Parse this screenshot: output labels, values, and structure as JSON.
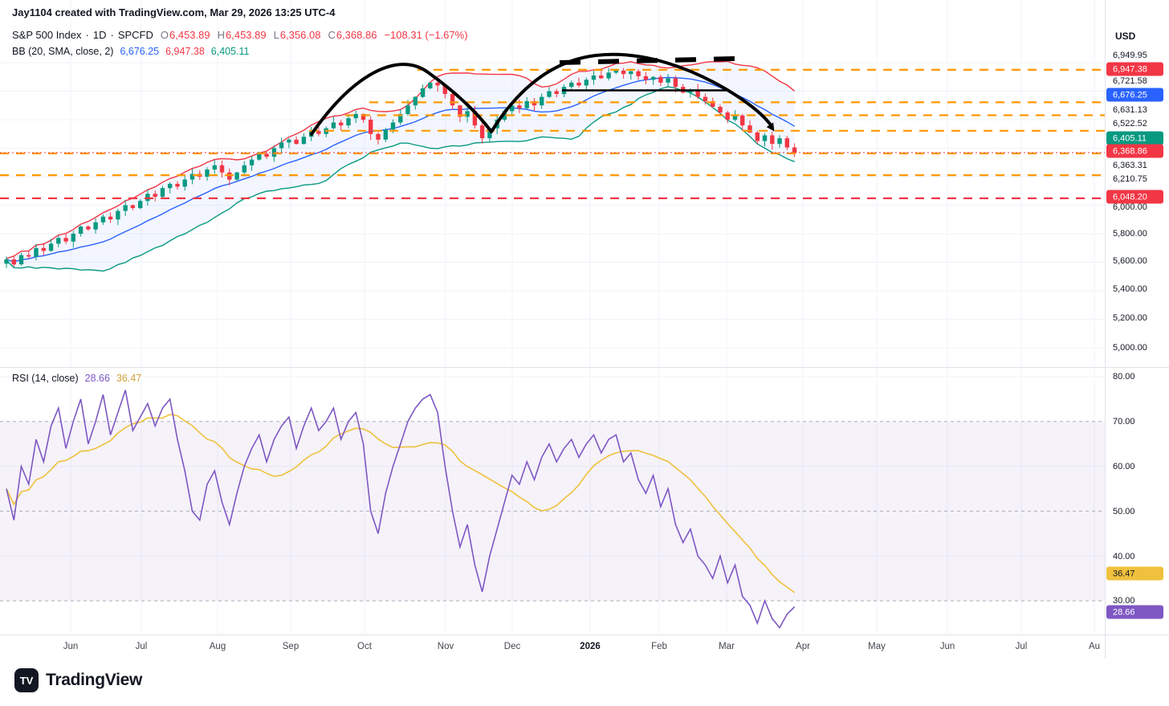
{
  "attribution": "Jay1104 created with TradingView.com, Mar 29, 2026 13:25 UTC-4",
  "legend": {
    "symbol": "S&P 500 Index",
    "separator": "·",
    "interval": "1D",
    "exchange": "SPCFD",
    "ohlc": {
      "o_label": "O",
      "o": "6,453.89",
      "h_label": "H",
      "h": "6,453.89",
      "l_label": "L",
      "l": "6,356.08",
      "c_label": "C",
      "c": "6,368.86"
    },
    "change": "−108.31 (−1.67%)",
    "bb_label": "BB (20, SMA, close, 2)",
    "bb_basis": "6,676.25",
    "bb_upper": "6,947.38",
    "bb_lower": "6,405.11"
  },
  "rsi_legend": {
    "label": "RSI (14, close)",
    "value": "28.66",
    "ma_value": "36.47"
  },
  "price_axis": {
    "currency": "USD",
    "labels": [
      {
        "text": "6,949.95",
        "kind": "plain"
      },
      {
        "text": "6,947.38",
        "kind": "badge",
        "bg": "#F23645",
        "fg": "#FFFFFF"
      },
      {
        "text": "6,721.58",
        "kind": "plain"
      },
      {
        "text": "6,676.25",
        "kind": "badge",
        "bg": "#2962FF",
        "fg": "#FFFFFF"
      },
      {
        "text": "6,631.13",
        "kind": "plain"
      },
      {
        "text": "6,522.52",
        "kind": "plain"
      },
      {
        "text": "6,405.11",
        "kind": "badge",
        "bg": "#089981",
        "fg": "#FFFFFF"
      },
      {
        "text": "6,368.86",
        "kind": "badge",
        "bg": "#F23645",
        "fg": "#FFFFFF"
      },
      {
        "text": "6,363.31",
        "kind": "plain"
      },
      {
        "text": "6,210.75",
        "kind": "plain"
      },
      {
        "text": "6,048.20",
        "kind": "badge",
        "bg": "#F23645",
        "fg": "#FFFFFF"
      },
      {
        "text": "6,000.00",
        "kind": "plain"
      },
      {
        "text": "5,800.00",
        "kind": "plain"
      },
      {
        "text": "5,600.00",
        "kind": "plain"
      },
      {
        "text": "5,400.00",
        "kind": "plain"
      },
      {
        "text": "5,200.00",
        "kind": "plain"
      },
      {
        "text": "5,000.00",
        "kind": "plain"
      }
    ]
  },
  "rsi_axis": {
    "labels": [
      {
        "text": "80.00",
        "kind": "plain"
      },
      {
        "text": "70.00",
        "kind": "plain"
      },
      {
        "text": "60.00",
        "kind": "plain"
      },
      {
        "text": "50.00",
        "kind": "plain"
      },
      {
        "text": "40.00",
        "kind": "plain"
      },
      {
        "text": "36.47",
        "kind": "badge",
        "bg": "#EFC13D",
        "fg": "#131722"
      },
      {
        "text": "30.00",
        "kind": "plain"
      },
      {
        "text": "28.66",
        "kind": "badge",
        "bg": "#7E57C2",
        "fg": "#FFFFFF"
      }
    ]
  },
  "time_axis": {
    "labels": [
      {
        "text": "Jun"
      },
      {
        "text": "Jul"
      },
      {
        "text": "Aug"
      },
      {
        "text": "Sep"
      },
      {
        "text": "Oct"
      },
      {
        "text": "Nov"
      },
      {
        "text": "Dec"
      },
      {
        "text": "2026",
        "bold": true
      },
      {
        "text": "Feb"
      },
      {
        "text": "Mar"
      },
      {
        "text": "Apr"
      },
      {
        "text": "May"
      },
      {
        "text": "Jun"
      },
      {
        "text": "Jul"
      },
      {
        "text": "Au"
      }
    ]
  },
  "logo": {
    "icon_text": "TV",
    "text": "TradingView"
  },
  "colors": {
    "up": "#089981",
    "down": "#F23645",
    "bb_basis": "#2962FF",
    "bb_upper": "#F23645",
    "bb_lower": "#089981",
    "band_fill": "rgba(41,98,255,0.055)",
    "level_orange": "#FF9800",
    "level_red": "#F23645",
    "rsi": "#7E57C2",
    "rsi_ma": "#EFC13D",
    "rsi_band_fill": "rgba(126,87,194,0.08)",
    "grid": "#F0F3FA",
    "annotation": "#000000"
  },
  "chart_data": {
    "type": "candlestick",
    "title": "S&P 500 Index · 1D · SPCFD",
    "x_range_labels": [
      "Jun",
      "Jul",
      "Aug",
      "Sep",
      "Oct",
      "Nov",
      "Dec",
      "2026",
      "Feb",
      "Mar",
      "Apr",
      "May",
      "Jun",
      "Jul",
      "Au"
    ],
    "price_axis_range": [
      4870,
      7260
    ],
    "last_bar": {
      "open": 6453.89,
      "high": 6453.89,
      "low": 6356.08,
      "close": 6368.86,
      "change": -108.31,
      "change_pct": -1.67
    },
    "closes": [
      5620,
      5585,
      5650,
      5640,
      5700,
      5680,
      5730,
      5770,
      5745,
      5800,
      5850,
      5830,
      5880,
      5920,
      5900,
      5960,
      6000,
      5980,
      6030,
      6080,
      6060,
      6120,
      6150,
      6130,
      6180,
      6220,
      6200,
      6250,
      6280,
      6230,
      6180,
      6230,
      6280,
      6320,
      6360,
      6340,
      6400,
      6440,
      6460,
      6430,
      6480,
      6520,
      6500,
      6540,
      6580,
      6560,
      6610,
      6640,
      6600,
      6500,
      6460,
      6530,
      6580,
      6640,
      6700,
      6760,
      6820,
      6860,
      6840,
      6780,
      6700,
      6620,
      6660,
      6560,
      6470,
      6540,
      6600,
      6660,
      6700,
      6680,
      6730,
      6700,
      6760,
      6800,
      6780,
      6830,
      6860,
      6840,
      6880,
      6910,
      6890,
      6930,
      6945,
      6920,
      6940,
      6905,
      6880,
      6900,
      6860,
      6890,
      6830,
      6790,
      6810,
      6760,
      6730,
      6690,
      6650,
      6600,
      6630,
      6560,
      6510,
      6450,
      6490,
      6430,
      6470,
      6405,
      6368.86
    ],
    "bollinger": {
      "length": 20,
      "source": "close",
      "std_dev": 2,
      "basis_last": 6676.25,
      "upper_last": 6947.38,
      "lower_last": 6405.11
    },
    "rsi": {
      "length": 14,
      "source": "close",
      "last": 28.66,
      "ma_last": 36.47,
      "axis_range": [
        20,
        84
      ],
      "overbought": 70,
      "oversold": 30,
      "midline": 50,
      "values": [
        55,
        48,
        60,
        56,
        66,
        61,
        69,
        73,
        64,
        70,
        75,
        65,
        70,
        76,
        67,
        72,
        77,
        68,
        71,
        74,
        69,
        73,
        75,
        66,
        59,
        50,
        48,
        56,
        59,
        52,
        47,
        54,
        60,
        64,
        67,
        61,
        66,
        69,
        71,
        64,
        69,
        73,
        68,
        70,
        73,
        66,
        70,
        72,
        65,
        50,
        45,
        54,
        60,
        65,
        70,
        73,
        75,
        76,
        72,
        60,
        50,
        42,
        47,
        38,
        32,
        40,
        46,
        52,
        58,
        56,
        61,
        57,
        62,
        65,
        61,
        64,
        66,
        62,
        65,
        67,
        63,
        66,
        67,
        61,
        63,
        57,
        54,
        58,
        51,
        55,
        47,
        43,
        46,
        40,
        38,
        35,
        40,
        34,
        38,
        31,
        29,
        25,
        30,
        26,
        24,
        27,
        28.66
      ]
    },
    "levels": [
      {
        "value": 6949.95,
        "color": "#FF9800",
        "style": "dashed"
      },
      {
        "value": 6721.58,
        "color": "#FF9800",
        "style": "dashed"
      },
      {
        "value": 6631.13,
        "color": "#FF9800",
        "style": "dashed"
      },
      {
        "value": 6522.52,
        "color": "#FF9800",
        "style": "dashed"
      },
      {
        "value": 6363.31,
        "color": "#FF9800",
        "style": "dashed"
      },
      {
        "value": 6210.75,
        "color": "#FF9800",
        "style": "dashed"
      },
      {
        "value": 6048.2,
        "color": "#F23645",
        "style": "dashed"
      }
    ],
    "last_price_line": {
      "value": 6368.86,
      "color": "#F23645",
      "style": "dotted"
    },
    "annotations": [
      "rounded-top-curve-left",
      "rounded-top-curve-right",
      "dashed-top-trendline",
      "neckline",
      "arrowhead"
    ]
  }
}
